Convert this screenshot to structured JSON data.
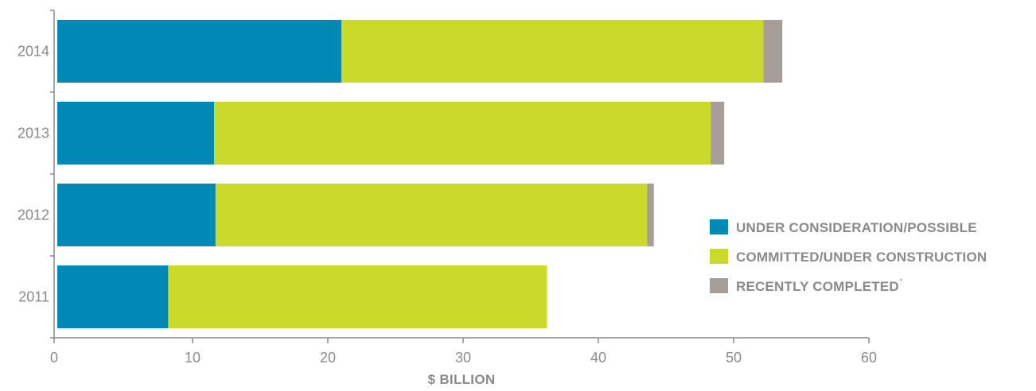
{
  "chart_data": {
    "type": "bar",
    "orientation": "horizontal",
    "stacked": true,
    "categories": [
      "2014",
      "2013",
      "2012",
      "2011"
    ],
    "series": [
      {
        "name": "UNDER CONSIDERATION/POSSIBLE",
        "color": "#0089b4",
        "values": [
          21.0,
          11.6,
          11.7,
          8.2
        ]
      },
      {
        "name": "COMMITTED/UNDER CONSTRUCTION",
        "color": "#c9da2a",
        "values": [
          31.2,
          36.7,
          31.9,
          28.0
        ]
      },
      {
        "name": "RECENTLY COMPLETED",
        "color": "#a59f98",
        "values": [
          1.4,
          1.0,
          0.5,
          0.0
        ]
      }
    ],
    "legend_footnote_mark": "*",
    "xlabel": "$ BILLION",
    "xlim": [
      0,
      60
    ],
    "xticks": [
      "0",
      "10",
      "20",
      "30",
      "40",
      "50",
      "60"
    ],
    "grid": false,
    "legend_position": "right"
  }
}
